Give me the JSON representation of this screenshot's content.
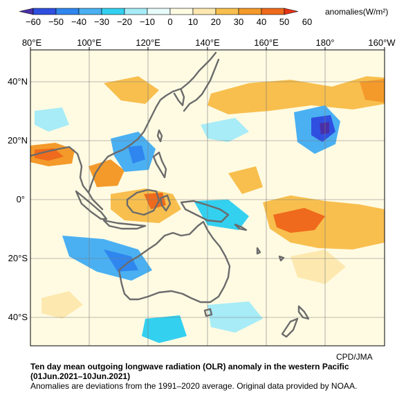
{
  "colorbar": {
    "unit_label": "anomalies(W/m²)",
    "ticks": [
      "−60",
      "−50",
      "−40",
      "−30",
      "−20",
      "−10",
      "0",
      "10",
      "20",
      "30",
      "40",
      "50",
      "60"
    ],
    "bins": [
      {
        "range": "<-60",
        "color": "#4a2fa8"
      },
      {
        "range": "-60..-50",
        "color": "#2f4fe0"
      },
      {
        "range": "-50..-40",
        "color": "#2f86ee"
      },
      {
        "range": "-40..-30",
        "color": "#4ab0f2"
      },
      {
        "range": "-30..-20",
        "color": "#33d0f0"
      },
      {
        "range": "-20..-10",
        "color": "#a7ecf7"
      },
      {
        "range": "-10..0",
        "color": "#e7fbfb"
      },
      {
        "range": "0..10",
        "color": "#fffbe3"
      },
      {
        "range": "10..20",
        "color": "#fde9b0"
      },
      {
        "range": "20..30",
        "color": "#f8bf4e"
      },
      {
        "range": "30..40",
        "color": "#f49a2a"
      },
      {
        "range": "40..50",
        "color": "#ef6a1c"
      },
      {
        "range": ">50",
        "color": "#e83318"
      }
    ]
  },
  "map": {
    "lon_labels": [
      "80°E",
      "100°E",
      "120°E",
      "140°E",
      "160°E",
      "180°",
      "160°W"
    ],
    "lat_labels": [
      "40°N",
      "20°N",
      "0°",
      "20°S",
      "40°S"
    ],
    "land_outline_color": "#6b6b6b"
  },
  "credit": "CPD/JMA",
  "title_line1": "Ten day mean outgoing longwave radiation (OLR) anomaly in the western Pacific",
  "title_line2": "(01Jun.2021–10Jun.2021)",
  "note": "Anomalies are deviations from the 1991–2020 average. Original data provided by NOAA."
}
